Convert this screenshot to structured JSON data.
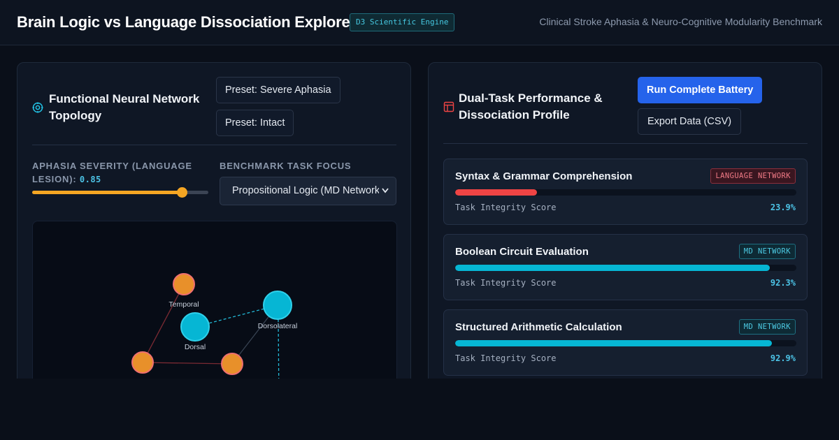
{
  "header": {
    "title": "Brain Logic vs Language Dissociation Explorer",
    "badge": "D3 Scientific Engine",
    "subtitle": "Clinical Stroke Aphasia & Neuro-Cognitive Modularity Benchmark"
  },
  "network_panel": {
    "icon": "target-icon",
    "title": "Functional Neural Network Topology",
    "preset_severe": "Preset: Severe Aphasia",
    "preset_intact": "Preset: Intact",
    "severity_label": "Aphasia Severity (Language Lesion):",
    "severity_value": "0.85",
    "severity_level": 0.85,
    "task_focus_label": "Benchmark Task Focus",
    "task_focus_selected": "Propositional Logic (MD Network)",
    "nodes": [
      {
        "label": "Temporal",
        "network": "language"
      },
      {
        "label": "Dorsolateral",
        "network": "md"
      },
      {
        "label": "Dorsal",
        "network": "md"
      },
      {
        "label": "",
        "network": "language"
      },
      {
        "label": "",
        "network": "language"
      }
    ]
  },
  "performance_panel": {
    "icon": "layout-icon",
    "title": "Dual-Task Performance & Dissociation Profile",
    "run_button": "Run Complete Battery",
    "export_button": "Export Data (CSV)",
    "tasks": [
      {
        "name": "Syntax & Grammar Comprehension",
        "network": "LANGUAGE NETWORK",
        "score_label": "Task Integrity Score",
        "score_text": "23.9%",
        "score": 23.9,
        "color": "#ef4444"
      },
      {
        "name": "Boolean Circuit Evaluation",
        "network": "MD NETWORK",
        "score_label": "Task Integrity Score",
        "score_text": "92.3%",
        "score": 92.3,
        "color": "#06b6d4"
      },
      {
        "name": "Structured Arithmetic Calculation",
        "network": "MD NETWORK",
        "score_label": "Task Integrity Score",
        "score_text": "92.9%",
        "score": 92.9,
        "color": "#06b6d4"
      }
    ]
  },
  "colors": {
    "language_node": "#f59e0b",
    "language_ring": "#f87171",
    "md_node": "#06b6d4",
    "accent_blue": "#2563eb"
  }
}
